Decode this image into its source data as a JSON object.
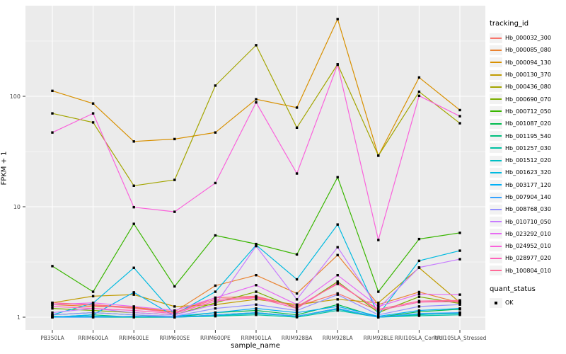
{
  "legend": {
    "tracking_title": "tracking_id",
    "quant_title": "quant_status",
    "quant_ok_label": "OK"
  },
  "chart_data": {
    "type": "line",
    "title": "",
    "xlabel": "sample_name",
    "ylabel": "FPKM + 1",
    "y_scale": "log10",
    "ylim": [
      0.75,
      650
    ],
    "y_ticks": [
      1,
      10,
      100
    ],
    "y_tick_labels": [
      "1",
      "10",
      "100"
    ],
    "y_minor_ticks": [
      3.162,
      31.62,
      316.2
    ],
    "grid": true,
    "legend_position": "right",
    "point_shape": "filled-black-square",
    "quant_status_of_all_points": "OK",
    "categories": [
      "PB350LA",
      "RRIM600LA",
      "RRIM600LE",
      "RRIM600SE",
      "RRIM600PE",
      "RRIM901LA",
      "RRIM928BA",
      "RRIM928LA",
      "RRIM928LE",
      "RRII105LA_Control",
      "RRII105LA_Stressed"
    ],
    "series": [
      {
        "name": "Hb_000032_300",
        "color": "#F8766D",
        "values": [
          1.35,
          1.3,
          1.22,
          1.1,
          1.5,
          1.55,
          1.25,
          1.64,
          1.15,
          1.37,
          1.4
        ]
      },
      {
        "name": "Hb_000085_080",
        "color": "#EA8331",
        "values": [
          1.3,
          1.25,
          1.23,
          1.12,
          1.93,
          2.4,
          1.64,
          3.65,
          1.3,
          1.69,
          1.35
        ]
      },
      {
        "name": "Hb_000094_130",
        "color": "#D89000",
        "values": [
          112,
          86,
          39,
          41,
          47,
          94,
          79,
          500,
          29,
          148,
          75
        ]
      },
      {
        "name": "Hb_000130_370",
        "color": "#C09B00",
        "values": [
          1.35,
          1.55,
          1.6,
          1.25,
          1.3,
          1.45,
          1.3,
          1.45,
          1.35,
          2.8,
          1.36
        ]
      },
      {
        "name": "Hb_000436_080",
        "color": "#A3A500",
        "values": [
          70,
          58,
          15.5,
          17.5,
          125,
          290,
          52,
          195,
          29,
          110,
          57
        ]
      },
      {
        "name": "Hb_000690_070",
        "color": "#7CAE00",
        "values": [
          1.2,
          1.15,
          1.1,
          1.05,
          1.35,
          1.7,
          1.2,
          2.1,
          1.1,
          1.53,
          1.33
        ]
      },
      {
        "name": "Hb_000712_050",
        "color": "#39B600",
        "values": [
          2.9,
          1.7,
          7.0,
          1.9,
          5.5,
          4.6,
          3.7,
          18.5,
          1.7,
          5.1,
          5.8
        ]
      },
      {
        "name": "Hb_001087_020",
        "color": "#00BB4E",
        "values": [
          1.05,
          1.1,
          1.05,
          1.0,
          1.1,
          1.15,
          1.05,
          1.3,
          1.0,
          1.12,
          1.18
        ]
      },
      {
        "name": "Hb_001195_540",
        "color": "#00BF7D",
        "values": [
          1.0,
          1.05,
          1.0,
          1.0,
          1.05,
          1.1,
          1.02,
          1.2,
          1.0,
          1.05,
          1.1
        ]
      },
      {
        "name": "Hb_001257_030",
        "color": "#00C1A3",
        "values": [
          1.02,
          1.0,
          1.0,
          1.0,
          1.02,
          1.05,
          1.0,
          1.15,
          1.0,
          1.03,
          1.05
        ]
      },
      {
        "name": "Hb_001512_020",
        "color": "#00BFC4",
        "values": [
          1.0,
          1.02,
          1.01,
          1.0,
          1.03,
          1.08,
          1.02,
          1.18,
          1.0,
          1.06,
          1.08
        ]
      },
      {
        "name": "Hb_001623_320",
        "color": "#00BAE0",
        "values": [
          1.05,
          1.34,
          2.8,
          1.06,
          1.7,
          4.5,
          2.2,
          6.9,
          1.05,
          3.24,
          4.0
        ]
      },
      {
        "name": "Hb_003177_120",
        "color": "#00B0F6",
        "values": [
          1.0,
          1.05,
          1.68,
          1.02,
          1.1,
          1.2,
          1.1,
          1.25,
          1.02,
          1.15,
          1.2
        ]
      },
      {
        "name": "Hb_007904_140",
        "color": "#35A2FF",
        "values": [
          1.0,
          1.0,
          1.02,
          1.0,
          1.05,
          1.1,
          1.02,
          1.2,
          1.0,
          1.08,
          1.1
        ]
      },
      {
        "name": "Hb_008768_030",
        "color": "#9590FF",
        "values": [
          1.05,
          1.1,
          1.05,
          1.02,
          1.2,
          1.3,
          1.15,
          1.6,
          1.05,
          1.25,
          1.3
        ]
      },
      {
        "name": "Hb_010710_050",
        "color": "#C77CFF",
        "values": [
          1.1,
          1.2,
          1.1,
          1.05,
          1.3,
          4.4,
          1.45,
          4.3,
          1.2,
          2.82,
          3.35
        ]
      },
      {
        "name": "Hb_023292_010",
        "color": "#E76BF3",
        "values": [
          1.3,
          1.35,
          1.25,
          1.15,
          1.5,
          1.95,
          1.3,
          2.4,
          1.25,
          1.62,
          1.6
        ]
      },
      {
        "name": "Hb_024952_010",
        "color": "#FA62DB",
        "values": [
          47,
          70,
          9.9,
          9.0,
          16.4,
          88,
          20,
          193,
          5.0,
          101,
          66
        ]
      },
      {
        "name": "Hb_028977_020",
        "color": "#FF62BC",
        "values": [
          1.25,
          1.2,
          1.15,
          1.08,
          1.4,
          1.5,
          1.2,
          2.05,
          1.15,
          1.37,
          1.38
        ]
      },
      {
        "name": "Hb_100804_010",
        "color": "#FF6A98",
        "values": [
          1.35,
          1.28,
          1.2,
          1.1,
          1.45,
          1.52,
          1.25,
          2.0,
          1.18,
          1.4,
          1.42
        ]
      }
    ],
    "style": {
      "panel_bg": "#EBEBEB",
      "grid_color": "#FFFFFF",
      "tick_label_color": "#4D4D4D",
      "point_color": "#000000"
    }
  }
}
